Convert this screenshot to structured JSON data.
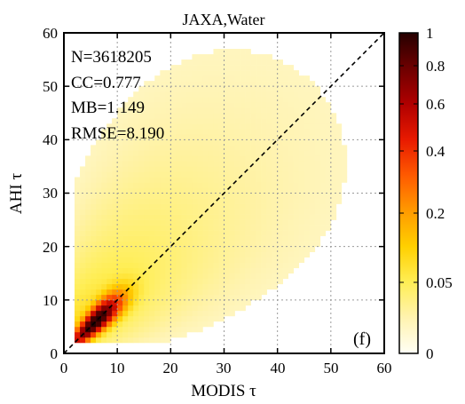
{
  "chart_data": {
    "type": "heatmap",
    "title": "JAXA,Water",
    "xlabel": "MODIS τ",
    "ylabel": "AHI τ",
    "xlim": [
      0,
      60
    ],
    "ylim": [
      0,
      60
    ],
    "xticks": [
      "0",
      "10",
      "20",
      "30",
      "40",
      "50",
      "60"
    ],
    "yticks": [
      "0",
      "10",
      "20",
      "30",
      "40",
      "50",
      "60"
    ],
    "grid": true,
    "one_to_one_line": true,
    "panel_label": "(f)",
    "stats": [
      "N=3618205",
      "CC=0.777",
      "MB=1.149",
      "RMSE=8.190"
    ],
    "colorbar": {
      "ticks": [
        "1",
        "0.8",
        "0.6",
        "0.4",
        "0.2",
        "0.05",
        "0"
      ],
      "colors": [
        "#fffff5",
        "#fff3b0",
        "#ffee55",
        "#ffd000",
        "#ff9a00",
        "#ff5a00",
        "#e81a00",
        "#b00000",
        "#6e0000",
        "#260000"
      ]
    },
    "density_description": "Normalized 2D histogram of AHI τ vs MODIS τ; maximum density near (6,6), concentrated along the 1:1 line, diffuse light-yellow spread up to 60 on the AHI axis."
  }
}
